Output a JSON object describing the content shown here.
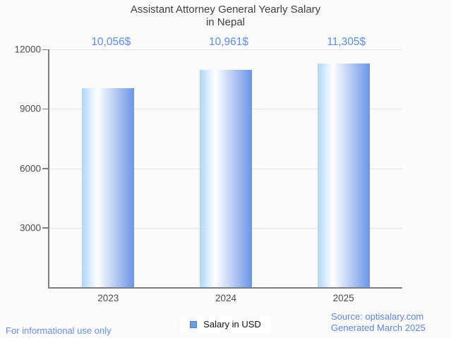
{
  "title": {
    "line1": "Assistant Attorney General Yearly Salary",
    "line2": "in Nepal"
  },
  "legend": {
    "label": "Salary in USD"
  },
  "footer": {
    "disclaimer": "For informational use only",
    "source": "Source: optisalary.com",
    "generated": "Generated March 2025"
  },
  "colors": {
    "background": "#fbfbfb",
    "title_text": "#404040",
    "axis_line": "#7f7f7f",
    "gridline": "#e3e3e3",
    "axis_label_text": "#4c4c4c",
    "value_label_text": "#5b8ceb",
    "footer_text": "#6b8ceb",
    "bar_gradient_left": "#aed6fa",
    "bar_gradient_mid": "#ffffff",
    "bar_gradient_right": "#6b95e8",
    "legend_marker_fill": "#6d9eea",
    "legend_marker_border": "#4d7cc9"
  },
  "chart_data": {
    "type": "bar",
    "title": "Assistant Attorney General Yearly Salary in Nepal",
    "categories": [
      "2023",
      "2024",
      "2025"
    ],
    "series": [
      {
        "name": "Salary in USD",
        "values": [
          10056,
          10961,
          11305
        ]
      }
    ],
    "value_labels": [
      "10,056$",
      "10,961$",
      "11,305$"
    ],
    "xlabel": "",
    "ylabel": "",
    "ylim": [
      0,
      12000
    ],
    "yticks": [
      3000,
      6000,
      9000,
      12000
    ],
    "grid": true,
    "legend_position": "bottom"
  }
}
